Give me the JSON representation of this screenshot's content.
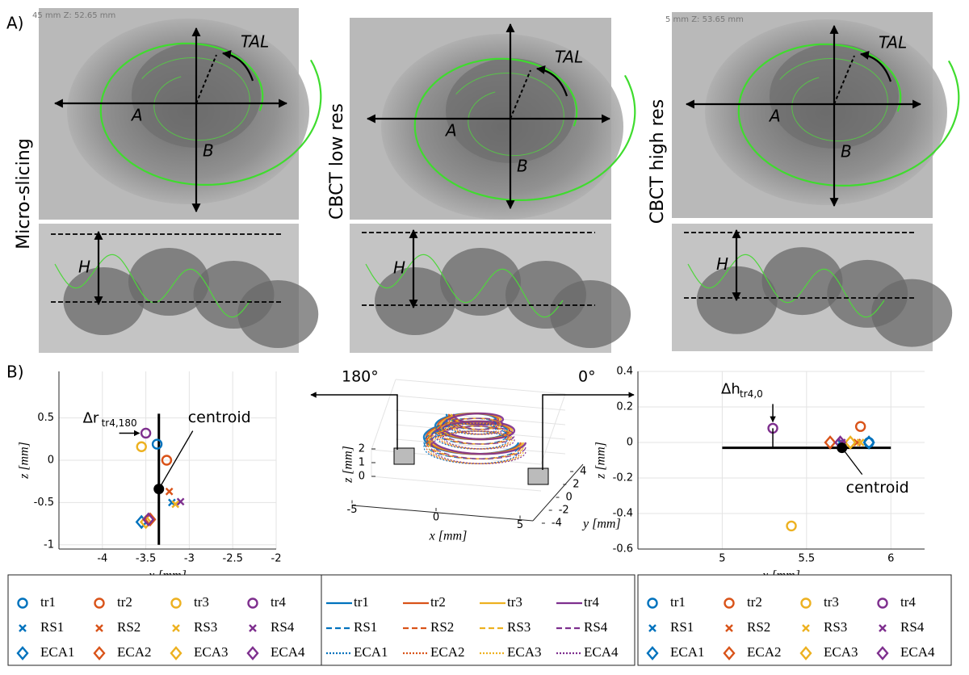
{
  "figure": {
    "panel_a": "A)",
    "panel_b": "B)",
    "images": [
      {
        "method": "Micro-slicing",
        "overlay": "45 mm Z: 52.65 mm",
        "labels": {
          "a": "A",
          "b": "B",
          "tal": "TAL",
          "h": "H"
        }
      },
      {
        "method": "CBCT low res",
        "labels": {
          "a": "A",
          "b": "B",
          "tal": "TAL",
          "h": "H"
        }
      },
      {
        "method": "CBCT high res",
        "overlay": "5 mm Z: 53.65 mm",
        "labels": {
          "a": "A",
          "b": "B",
          "tal": "TAL",
          "h": "H"
        }
      }
    ]
  },
  "chart_data": [
    {
      "type": "scatter",
      "xlabel": "x [mm]",
      "ylabel": "z [mm]",
      "xlim": [
        -4.5,
        -2
      ],
      "ylim": [
        -1.05,
        1.05
      ],
      "xticks": [
        -4,
        -3.5,
        -3,
        -2.5,
        -2
      ],
      "yticks": [
        -1,
        -0.5,
        0,
        0.5
      ],
      "grid": true,
      "series": [
        {
          "name": "tr1",
          "color": "#0072bd",
          "marker": "circle",
          "x": [
            -3.37
          ],
          "values": [
            0.19
          ]
        },
        {
          "name": "tr2",
          "color": "#d95319",
          "marker": "circle",
          "x": [
            -3.26
          ],
          "values": [
            0
          ]
        },
        {
          "name": "tr3",
          "color": "#edb120",
          "marker": "circle",
          "x": [
            -3.55
          ],
          "values": [
            0.16
          ]
        },
        {
          "name": "tr4",
          "color": "#7e2f8e",
          "marker": "circle",
          "x": [
            -3.5
          ],
          "values": [
            0.32
          ]
        },
        {
          "name": "RS1",
          "color": "#0072bd",
          "marker": "x",
          "x": [
            -3.2
          ],
          "values": [
            -0.5
          ]
        },
        {
          "name": "RS2",
          "color": "#d95319",
          "marker": "x",
          "x": [
            -3.23
          ],
          "values": [
            -0.37
          ]
        },
        {
          "name": "RS3",
          "color": "#edb120",
          "marker": "x",
          "x": [
            -3.16
          ],
          "values": [
            -0.52
          ]
        },
        {
          "name": "RS4",
          "color": "#7e2f8e",
          "marker": "x",
          "x": [
            -3.1
          ],
          "values": [
            -0.49
          ]
        },
        {
          "name": "ECA1",
          "color": "#0072bd",
          "marker": "diamond",
          "x": [
            -3.55
          ],
          "values": [
            -0.73
          ]
        },
        {
          "name": "ECA2",
          "color": "#d95319",
          "marker": "diamond",
          "x": [
            -3.45
          ],
          "values": [
            -0.7
          ]
        },
        {
          "name": "ECA3",
          "color": "#edb120",
          "marker": "diamond",
          "x": [
            -3.5
          ],
          "values": [
            -0.73
          ]
        },
        {
          "name": "ECA4",
          "color": "#7e2f8e",
          "marker": "diamond",
          "x": [
            -3.47
          ],
          "values": [
            -0.7
          ]
        }
      ],
      "reference_line": {
        "x": [
          -3.35,
          -3.35
        ],
        "values": [
          -1,
          0.55
        ]
      },
      "centroid": {
        "label": "centroid",
        "x": -3.35,
        "value": -0.34
      },
      "annotation": {
        "text": "Δr",
        "subscript": "tr4,180"
      }
    },
    {
      "type": "line3d",
      "xlabel": "x [mm]",
      "ylabel": "y [mm]",
      "zlabel": "z [mm]",
      "xticks": [
        -5,
        0,
        5
      ],
      "yticks": [
        -4,
        -2,
        0,
        2,
        4
      ],
      "zticks": [
        0,
        1,
        2
      ],
      "view_labels": [
        "180°",
        "0°"
      ],
      "series": [
        {
          "name": "tr1",
          "color": "#0072bd",
          "line_style": "solid"
        },
        {
          "name": "tr2",
          "color": "#d95319",
          "line_style": "solid"
        },
        {
          "name": "tr3",
          "color": "#edb120",
          "line_style": "solid"
        },
        {
          "name": "tr4",
          "color": "#7e2f8e",
          "line_style": "solid"
        },
        {
          "name": "RS1",
          "color": "#0072bd",
          "line_style": "dashed"
        },
        {
          "name": "RS2",
          "color": "#d95319",
          "line_style": "dashed"
        },
        {
          "name": "RS3",
          "color": "#edb120",
          "line_style": "dashed"
        },
        {
          "name": "RS4",
          "color": "#7e2f8e",
          "line_style": "dashed"
        },
        {
          "name": "ECA1",
          "color": "#0072bd",
          "line_style": "dotted"
        },
        {
          "name": "ECA2",
          "color": "#d95319",
          "line_style": "dotted"
        },
        {
          "name": "ECA3",
          "color": "#edb120",
          "line_style": "dotted"
        },
        {
          "name": "ECA4",
          "color": "#7e2f8e",
          "line_style": "dotted"
        }
      ]
    },
    {
      "type": "scatter",
      "xlabel": "x [mm]",
      "ylabel": "z [mm]",
      "xlim": [
        4.5,
        6.2
      ],
      "ylim": [
        -0.6,
        0.4
      ],
      "xticks": [
        5,
        5.5,
        6
      ],
      "yticks": [
        -0.6,
        -0.4,
        -0.2,
        0,
        0.2,
        0.4
      ],
      "grid": true,
      "series": [
        {
          "name": "tr1",
          "color": "#0072bd",
          "marker": "circle",
          "x": [
            5.87
          ],
          "values": [
            0
          ]
        },
        {
          "name": "tr2",
          "color": "#d95319",
          "marker": "circle",
          "x": [
            5.82
          ],
          "values": [
            0.09
          ]
        },
        {
          "name": "tr3",
          "color": "#edb120",
          "marker": "circle",
          "x": [
            5.41
          ],
          "values": [
            -0.47
          ]
        },
        {
          "name": "tr4",
          "color": "#7e2f8e",
          "marker": "circle",
          "x": [
            5.3
          ],
          "values": [
            0.08
          ]
        },
        {
          "name": "RS1",
          "color": "#0072bd",
          "marker": "x",
          "x": [
            5.7
          ],
          "values": [
            0
          ]
        },
        {
          "name": "RS2",
          "color": "#d95319",
          "marker": "x",
          "x": [
            5.8
          ],
          "values": [
            0
          ]
        },
        {
          "name": "RS3",
          "color": "#edb120",
          "marker": "x",
          "x": [
            5.82
          ],
          "values": [
            0
          ]
        },
        {
          "name": "RS4",
          "color": "#7e2f8e",
          "marker": "x",
          "x": [
            5.71
          ],
          "values": [
            0
          ]
        },
        {
          "name": "ECA1",
          "color": "#0072bd",
          "marker": "diamond",
          "x": [
            5.87
          ],
          "values": [
            0
          ]
        },
        {
          "name": "ECA2",
          "color": "#d95319",
          "marker": "diamond",
          "x": [
            5.64
          ],
          "values": [
            0
          ]
        },
        {
          "name": "ECA3",
          "color": "#edb120",
          "marker": "diamond",
          "x": [
            5.76
          ],
          "values": [
            0
          ]
        },
        {
          "name": "ECA4",
          "color": "#7e2f8e",
          "marker": "diamond",
          "x": [
            5.7
          ],
          "values": [
            0
          ]
        }
      ],
      "reference_line": {
        "x": [
          5,
          6
        ],
        "values": [
          -0.03,
          -0.03
        ]
      },
      "centroid": {
        "label": "centroid",
        "x": 5.71,
        "value": -0.03
      },
      "annotation": {
        "text": "Δh",
        "subscript": "tr4,0"
      }
    }
  ]
}
